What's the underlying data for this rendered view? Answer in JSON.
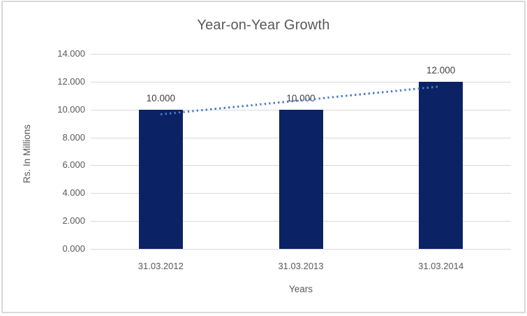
{
  "chart_data": {
    "type": "bar",
    "title": "Year-on-Year Growth",
    "xlabel": "Years",
    "ylabel": "Rs. In Millions",
    "categories": [
      "31.03.2012",
      "31.03.2013",
      "31.03.2014"
    ],
    "values": [
      10.0,
      10.0,
      12.0
    ],
    "data_labels": [
      "10.000",
      "10.000",
      "12.000"
    ],
    "y_tick_labels": [
      "14.000",
      "12.000",
      "10.000",
      "8.000",
      "6.000",
      "4.000",
      "2.000",
      "0.000"
    ],
    "ylim": [
      0,
      14
    ],
    "y_tick_step": 2,
    "grid": true,
    "legend": "none",
    "trendline": {
      "style": "dotted-linear",
      "start_value": 9.667,
      "end_value": 11.667,
      "color": "#4a7bc8"
    },
    "colors": {
      "bar": "#0b2264",
      "gridline": "#d9d9d9",
      "axis_text": "#595959",
      "data_label": "#404040",
      "title": "#595959",
      "frame_border": "#d9d9d9",
      "background": "#ffffff"
    }
  }
}
